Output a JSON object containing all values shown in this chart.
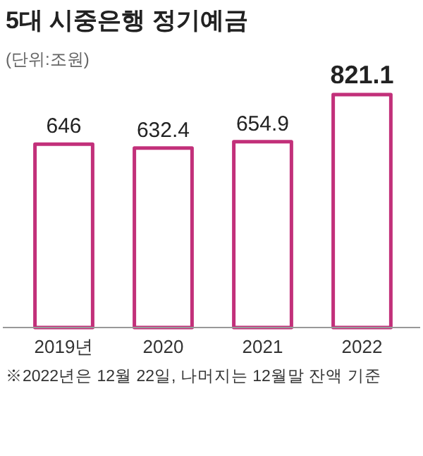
{
  "chart_data": {
    "type": "bar",
    "title": "5대 시중은행 정기예금",
    "subtitle": "(단위:조원)",
    "categories": [
      "2019년",
      "2020",
      "2021",
      "2022"
    ],
    "values": [
      646,
      632.4,
      654.9,
      821.1
    ],
    "color": "#c2307a",
    "data_labels": true,
    "annotations": [
      "※2022년은 12월 22일, 나머지는 12월말 잔액 기준"
    ]
  }
}
